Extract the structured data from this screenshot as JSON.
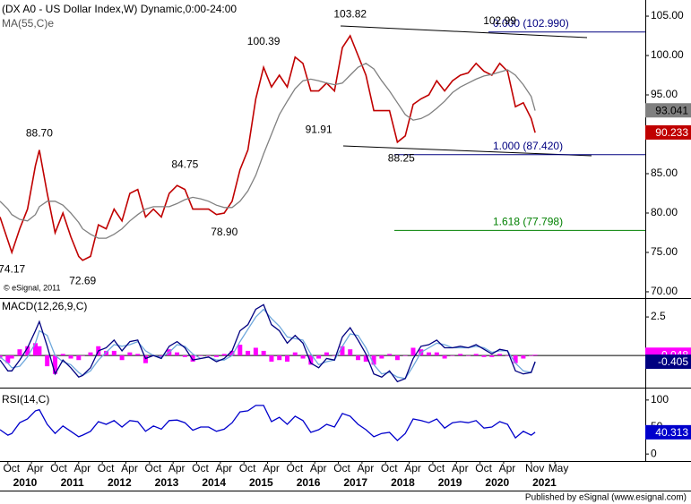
{
  "chart_data": {
    "type": "line",
    "title": "(DX A0 - US Dollar Index,W) Dynamic,0:00-24:00",
    "copyright": "© eSignal, 2011",
    "footer": "Published by eSignal (www.esignal.com)",
    "xlim": [
      "2009-08",
      "2023-04"
    ],
    "xticks": [
      {
        "value": "2009-10",
        "label": "Oct"
      },
      {
        "value": "2010-04",
        "label": "Apr"
      },
      {
        "value": "2010-10",
        "label": "Oct"
      },
      {
        "value": "2011-04",
        "label": "Apr"
      },
      {
        "value": "2011-10",
        "label": "Oct"
      },
      {
        "value": "2012-04",
        "label": "Apr"
      },
      {
        "value": "2012-10",
        "label": "Oct"
      },
      {
        "value": "2013-04",
        "label": "Apr"
      },
      {
        "value": "2013-10",
        "label": "Oct"
      },
      {
        "value": "2014-04",
        "label": "Apr"
      },
      {
        "value": "2014-10",
        "label": "Oct"
      },
      {
        "value": "2015-04",
        "label": "Apr"
      },
      {
        "value": "2015-10",
        "label": "Oct"
      },
      {
        "value": "2016-04",
        "label": "Apr"
      },
      {
        "value": "2016-10",
        "label": "Oct"
      },
      {
        "value": "2017-04",
        "label": "Apr"
      },
      {
        "value": "2017-10",
        "label": "Oct"
      },
      {
        "value": "2018-04",
        "label": "Apr"
      },
      {
        "value": "2018-10",
        "label": "Oct"
      },
      {
        "value": "2019-04",
        "label": "Apr"
      },
      {
        "value": "2019-10",
        "label": "Oct"
      },
      {
        "value": "2020-04",
        "label": "Apr"
      },
      {
        "value": "2020-11",
        "label": "Nov"
      },
      {
        "value": "2021-05",
        "label": "May"
      }
    ],
    "year_labels": [
      "2010",
      "2011",
      "2012",
      "2013",
      "2014",
      "2015",
      "2016",
      "2017",
      "2018",
      "2019",
      "2020",
      "2021"
    ],
    "x": [
      "2009-08",
      "2009-10",
      "2009-11",
      "2010-01",
      "2010-03",
      "2010-05",
      "2010-06",
      "2010-08",
      "2010-10",
      "2010-12",
      "2011-02",
      "2011-04",
      "2011-05",
      "2011-07",
      "2011-09",
      "2011-11",
      "2012-01",
      "2012-03",
      "2012-05",
      "2012-07",
      "2012-09",
      "2012-11",
      "2013-01",
      "2013-03",
      "2013-05",
      "2013-07",
      "2013-09",
      "2013-11",
      "2014-01",
      "2014-03",
      "2014-05",
      "2014-07",
      "2014-09",
      "2014-11",
      "2015-01",
      "2015-03",
      "2015-05",
      "2015-07",
      "2015-09",
      "2015-11",
      "2016-01",
      "2016-03",
      "2016-05",
      "2016-07",
      "2016-09",
      "2016-11",
      "2017-01",
      "2017-03",
      "2017-05",
      "2017-07",
      "2017-09",
      "2017-11",
      "2018-01",
      "2018-03",
      "2018-05",
      "2018-07",
      "2018-09",
      "2018-11",
      "2019-01",
      "2019-03",
      "2019-05",
      "2019-07",
      "2019-09",
      "2019-11",
      "2020-01",
      "2020-03",
      "2020-05",
      "2020-07",
      "2020-09",
      "2020-11",
      "2020-12"
    ],
    "panels": [
      {
        "label": "MA(55,C)e",
        "ylim": [
          69.2,
          107.05
        ],
        "yticks": [
          {
            "value": 105,
            "label": "105.00"
          },
          {
            "value": 100,
            "label": "100.00"
          },
          {
            "value": 95,
            "label": "95.00"
          },
          {
            "value": 90,
            "label": "90.00"
          },
          {
            "value": 85,
            "label": "85.00"
          },
          {
            "value": 80,
            "label": "80.00"
          },
          {
            "value": 75,
            "label": "75.00"
          },
          {
            "value": 70,
            "label": "70.00"
          }
        ],
        "series": [
          {
            "color": "#c00000",
            "last_value": 90.233,
            "values": [
              79.5,
              76.5,
              75.0,
              78.0,
              80.5,
              86.0,
              88.0,
              82.5,
              77.5,
              80.0,
              77.0,
              74.5,
              74.0,
              74.5,
              78.5,
              78.0,
              80.5,
              79.0,
              82.5,
              83.0,
              79.5,
              80.5,
              79.5,
              82.5,
              83.5,
              83.0,
              80.5,
              80.5,
              80.5,
              79.8,
              80.0,
              81.5,
              85.5,
              88.0,
              94.5,
              98.5,
              96.0,
              97.5,
              96.0,
              99.8,
              99.0,
              95.5,
              95.5,
              96.5,
              95.5,
              101.0,
              102.5,
              100.0,
              97.5,
              93.0,
              93.0,
              93.0,
              89.0,
              89.8,
              93.8,
              94.5,
              95.0,
              96.8,
              95.5,
              96.8,
              97.5,
              97.8,
              99.0,
              98.0,
              97.5,
              99.0,
              98.0,
              93.5,
              94.0,
              92.0,
              90.2
            ]
          },
          {
            "color": "#808080",
            "last_value": 93.041,
            "values": [
              81.5,
              80.5,
              79.8,
              79.2,
              79.0,
              79.8,
              80.8,
              81.5,
              81.5,
              81.0,
              80.0,
              78.8,
              78.0,
              77.3,
              76.8,
              76.8,
              77.3,
              78.0,
              79.0,
              79.8,
              80.5,
              80.8,
              80.8,
              80.8,
              81.2,
              81.7,
              82.0,
              81.8,
              81.5,
              81.0,
              80.7,
              80.7,
              81.5,
              82.8,
              84.8,
              87.5,
              90.0,
              92.5,
              94.2,
              95.8,
              96.8,
              97.0,
              96.8,
              96.5,
              96.3,
              96.5,
              97.5,
              98.5,
              99.0,
              98.3,
              96.8,
              95.5,
              94.0,
              92.5,
              91.8,
              92.0,
              92.5,
              93.3,
              94.2,
              95.3,
              96.0,
              96.5,
              97.0,
              97.4,
              97.6,
              97.9,
              98.2,
              97.5,
              96.3,
              94.8,
              93.0
            ]
          }
        ],
        "annotations": [
          {
            "x": "2009-11",
            "value": 74.17,
            "label": "74.17"
          },
          {
            "x": "2010-06",
            "value": 88.7,
            "label": "88.70"
          },
          {
            "x": "2011-05",
            "value": 72.69,
            "label": "72.69"
          },
          {
            "x": "2013-07",
            "value": 84.75,
            "label": "84.75"
          },
          {
            "x": "2014-05",
            "value": 78.9,
            "label": "78.90"
          },
          {
            "x": "2015-03",
            "value": 100.39,
            "label": "100.39"
          },
          {
            "x": "2016-05",
            "value": 91.91,
            "label": "91.91"
          },
          {
            "x": "2017-01",
            "value": 103.82,
            "label": "103.82"
          },
          {
            "x": "2018-02",
            "value": 88.25,
            "label": "88.25"
          },
          {
            "x": "2020-03",
            "value": 102.99,
            "label": "102.99"
          }
        ],
        "fib": [
          {
            "value": 102.99,
            "label": "0.000 (102.990)",
            "color": "#000080"
          },
          {
            "value": 87.42,
            "label": "1.000 (87.420)",
            "color": "#000080"
          },
          {
            "value": 77.798,
            "label": "1.618 (77.798)",
            "color": "#008000"
          }
        ]
      },
      {
        "label": "MACD(12,26,9,C)",
        "ylim": [
          -2.03,
          3.55
        ],
        "yticks": [
          2.5
        ],
        "series": [
          {
            "color": "#ff00ff",
            "kind": "histogram",
            "last_value": 0.048,
            "values": [
              -0.2,
              -0.5,
              -0.2,
              0.4,
              0.6,
              0.8,
              0.6,
              -0.7,
              -1.2,
              0.1,
              -0.2,
              -0.3,
              0,
              0.2,
              0.6,
              0.3,
              0.3,
              -0.3,
              0.2,
              0.1,
              -0.5,
              0,
              -0.1,
              0.4,
              0.2,
              -0.1,
              -0.4,
              0,
              0,
              -0.1,
              0.1,
              0.3,
              0.7,
              0.3,
              0.5,
              0.3,
              -0.4,
              -0.3,
              -0.4,
              0.2,
              -0.2,
              -0.6,
              -0.2,
              0.2,
              0,
              0.6,
              0.4,
              -0.3,
              -0.4,
              -0.6,
              -0.2,
              0.1,
              -0.3,
              0,
              0.5,
              0.4,
              0.2,
              0.2,
              -0.2,
              0,
              0.1,
              0,
              0.1,
              -0.1,
              -0.1,
              0.1,
              0,
              -0.5,
              -0.2,
              0,
              0.048
            ]
          },
          {
            "color": "#6fa8dc",
            "values": [
              -0.1,
              -0.5,
              -0.8,
              -0.7,
              -0.1,
              0.8,
              1.6,
              1.3,
              0.0,
              -0.4,
              -0.6,
              -1.1,
              -1.3,
              -1.0,
              -0.3,
              0.2,
              0.7,
              0.6,
              0.7,
              0.9,
              0.3,
              0.0,
              -0.1,
              0.2,
              0.7,
              0.6,
              0.1,
              -0.2,
              -0.1,
              -0.3,
              -0.3,
              0.0,
              0.9,
              1.7,
              2.5,
              3.0,
              2.4,
              1.9,
              1.2,
              1.1,
              1.0,
              0.1,
              -0.6,
              -0.4,
              -0.3,
              0.6,
              1.4,
              1.3,
              0.5,
              -0.6,
              -1.2,
              -1.1,
              -1.4,
              -1.5,
              -0.7,
              0.2,
              0.5,
              0.8,
              0.7,
              0.5,
              0.5,
              0.5,
              0.6,
              0.5,
              0.2,
              0.3,
              0.3,
              -0.5,
              -1.0,
              -1.1,
              -0.45
            ]
          },
          {
            "color": "#000080",
            "last_value": -0.405,
            "values": [
              -0.3,
              -1.0,
              -1.0,
              -0.3,
              0.5,
              1.6,
              2.2,
              0.6,
              -1.2,
              -0.3,
              -0.8,
              -1.4,
              -1.3,
              -0.8,
              0.3,
              0.5,
              1.0,
              0.3,
              0.9,
              1.0,
              -0.2,
              0,
              -0.2,
              0.6,
              0.9,
              0.5,
              -0.3,
              -0.2,
              -0.1,
              -0.4,
              -0.2,
              0.3,
              1.6,
              2.0,
              3.0,
              3.3,
              2.0,
              1.6,
              0.8,
              1.3,
              0.8,
              -0.5,
              -0.8,
              -0.2,
              -0.3,
              1.2,
              1.8,
              1.0,
              0.1,
              -1.2,
              -1.4,
              -1.0,
              -1.7,
              -1.5,
              -0.2,
              0.6,
              0.7,
              1.0,
              0.5,
              0.5,
              0.6,
              0.5,
              0.7,
              0.4,
              0.1,
              0.4,
              0.3,
              -1.0,
              -1.2,
              -1.1,
              -0.405
            ]
          }
        ]
      },
      {
        "label": "RSI(14,C)",
        "ylim": [
          -13,
          118
        ],
        "yticks": [
          100,
          50,
          0
        ],
        "series": [
          {
            "color": "#0000cc",
            "last_value": 40.313,
            "values": [
              45,
              35,
              38,
              58,
              65,
              80,
              82,
              55,
              38,
              52,
              42,
              32,
              35,
              42,
              60,
              55,
              62,
              50,
              62,
              60,
              42,
              52,
              46,
              62,
              63,
              58,
              44,
              50,
              50,
              42,
              46,
              58,
              78,
              80,
              90,
              90,
              60,
              68,
              55,
              70,
              62,
              40,
              45,
              55,
              50,
              75,
              70,
              55,
              45,
              32,
              38,
              40,
              25,
              38,
              65,
              62,
              58,
              65,
              48,
              58,
              60,
              58,
              62,
              48,
              50,
              60,
              55,
              30,
              42,
              35,
              40.313
            ]
          }
        ]
      }
    ]
  }
}
